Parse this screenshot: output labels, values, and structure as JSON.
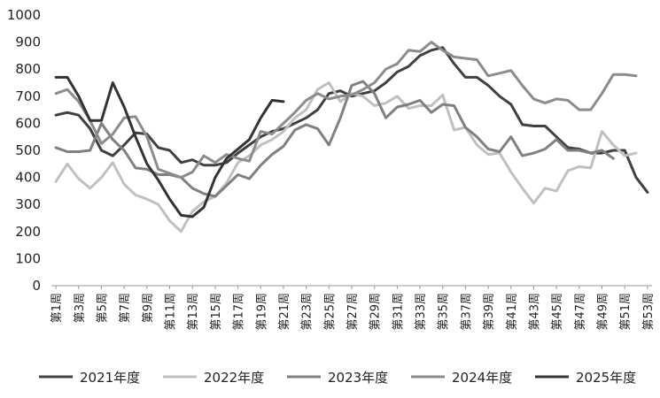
{
  "chart_data": {
    "type": "line",
    "title": "",
    "xlabel": "",
    "ylabel": "",
    "ylim": [
      0,
      1000
    ],
    "yticks": [
      0,
      100,
      200,
      300,
      400,
      500,
      600,
      700,
      800,
      900,
      1000
    ],
    "grid": false,
    "legend_position": "bottom",
    "categories": [
      "第1周",
      "第2周",
      "第3周",
      "第4周",
      "第5周",
      "第6周",
      "第7周",
      "第8周",
      "第9周",
      "第10周",
      "第11周",
      "第12周",
      "第13周",
      "第14周",
      "第15周",
      "第16周",
      "第17周",
      "第18周",
      "第19周",
      "第20周",
      "第21周",
      "第22周",
      "第23周",
      "第24周",
      "第25周",
      "第26周",
      "第27周",
      "第28周",
      "第29周",
      "第30周",
      "第31周",
      "第32周",
      "第33周",
      "第34周",
      "第35周",
      "第36周",
      "第37周",
      "第38周",
      "第39周",
      "第40周",
      "第41周",
      "第42周",
      "第43周",
      "第44周",
      "第45周",
      "第46周",
      "第47周",
      "第48周",
      "第49周",
      "第50周",
      "第51周",
      "第52周",
      "第53周"
    ],
    "x_tick_labels": [
      "第1周",
      "第3周",
      "第5周",
      "第7周",
      "第9周",
      "第11周",
      "第13周",
      "第15周",
      "第17周",
      "第19周",
      "第21周",
      "第23周",
      "第25周",
      "第27周",
      "第29周",
      "第31周",
      "第33周",
      "第35周",
      "第37周",
      "第39周",
      "第41周",
      "第43周",
      "第45周",
      "第47周",
      "第49周",
      "第51周",
      "第53周"
    ],
    "series": [
      {
        "name": "2021年度",
        "color": "#404040",
        "values": [
          630,
          640,
          630,
          580,
          500,
          480,
          520,
          565,
          560,
          510,
          500,
          455,
          465,
          445,
          445,
          455,
          490,
          520,
          550,
          570,
          580,
          600,
          620,
          650,
          710,
          720,
          700,
          710,
          720,
          750,
          790,
          810,
          850,
          870,
          880,
          820,
          770,
          770,
          740,
          700,
          670,
          595,
          590,
          590,
          550,
          510,
          505,
          490,
          490,
          500,
          500,
          400,
          345
        ]
      },
      {
        "name": "2022年度",
        "color": "#c0c0c0",
        "values": [
          385,
          450,
          395,
          360,
          400,
          455,
          375,
          335,
          320,
          300,
          240,
          200,
          275,
          310,
          330,
          380,
          455,
          480,
          520,
          540,
          570,
          620,
          650,
          725,
          750,
          680,
          710,
          700,
          665,
          675,
          700,
          655,
          665,
          665,
          705,
          575,
          585,
          520,
          485,
          490,
          420,
          360,
          305,
          360,
          350,
          425,
          440,
          435,
          570,
          520,
          480,
          490,
          null
        ]
      },
      {
        "name": "2023年度",
        "color": "#808080",
        "values": [
          510,
          495,
          495,
          500,
          600,
          540,
          500,
          435,
          430,
          410,
          410,
          400,
          360,
          340,
          330,
          370,
          410,
          395,
          445,
          485,
          515,
          575,
          595,
          580,
          520,
          620,
          740,
          755,
          710,
          620,
          660,
          670,
          685,
          640,
          670,
          665,
          585,
          550,
          505,
          495,
          550,
          480,
          490,
          505,
          540,
          500,
          500,
          490,
          500,
          470,
          null,
          null,
          null
        ]
      },
      {
        "name": "2024年度",
        "color": "#8c8c8c",
        "values": [
          710,
          725,
          680,
          610,
          525,
          560,
          620,
          625,
          550,
          430,
          415,
          400,
          420,
          480,
          455,
          485,
          470,
          460,
          570,
          560,
          600,
          640,
          685,
          710,
          690,
          700,
          705,
          725,
          750,
          800,
          820,
          870,
          865,
          900,
          870,
          845,
          840,
          835,
          775,
          785,
          795,
          740,
          690,
          675,
          690,
          685,
          650,
          650,
          710,
          780,
          780,
          775,
          null
        ]
      },
      {
        "name": "2025年度",
        "color": "#333333",
        "values": [
          770,
          770,
          700,
          610,
          610,
          750,
          660,
          550,
          450,
          390,
          320,
          260,
          255,
          290,
          400,
          470,
          505,
          540,
          620,
          685,
          680,
          null,
          null,
          null,
          null,
          null,
          null,
          null,
          null,
          null,
          null,
          null,
          null,
          null,
          null,
          null,
          null,
          null,
          null,
          null,
          null,
          null,
          null,
          null,
          null,
          null,
          null,
          null,
          null,
          null,
          null,
          null,
          null
        ]
      }
    ]
  }
}
